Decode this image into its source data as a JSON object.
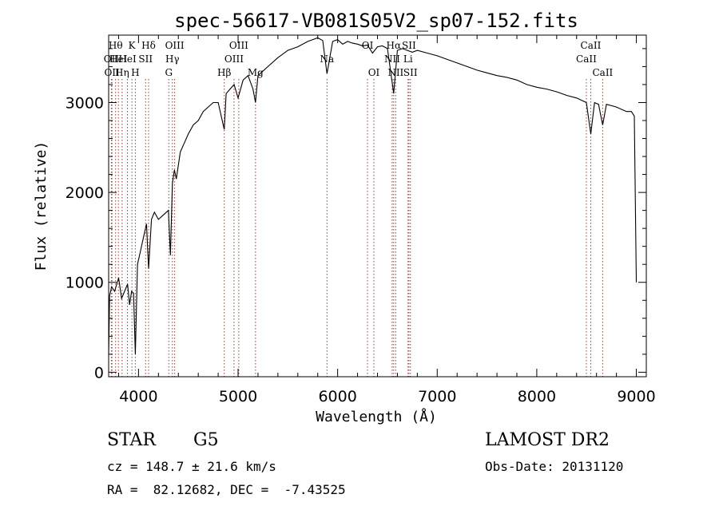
{
  "chart_data": {
    "type": "line",
    "title": "spec-56617-VB081S05V2_sp07-152.fits",
    "xlabel": "Wavelength (Å)",
    "ylabel": "Flux (relative)",
    "xlim": [
      3700,
      9100
    ],
    "ylim": [
      -50,
      3750
    ],
    "xticks": [
      4000,
      5000,
      6000,
      7000,
      8000,
      9000
    ],
    "yticks": [
      0,
      1000,
      2000,
      3000
    ],
    "grid": false,
    "series": [
      {
        "x": [
          3700,
          3710,
          3730,
          3760,
          3800,
          3830,
          3860,
          3890,
          3910,
          3930,
          3950,
          3968,
          3990,
          4020,
          4050,
          4080,
          4101,
          4130,
          4160,
          4200,
          4250,
          4300,
          4320,
          4340,
          4360,
          4380,
          4420,
          4460,
          4500,
          4550,
          4600,
          4650,
          4700,
          4750,
          4800,
          4861,
          4880,
          4920,
          4960,
          5000,
          5050,
          5100,
          5150,
          5175,
          5200,
          5300,
          5400,
          5500,
          5600,
          5700,
          5750,
          5800,
          5850,
          5893,
          5950,
          6000,
          6050,
          6100,
          6150,
          6200,
          6250,
          6300,
          6350,
          6400,
          6450,
          6500,
          6563,
          6600,
          6650,
          6700,
          6750,
          6800,
          6900,
          7000,
          7100,
          7200,
          7300,
          7400,
          7500,
          7600,
          7700,
          7800,
          7900,
          8000,
          8100,
          8200,
          8300,
          8400,
          8498,
          8542,
          8580,
          8620,
          8662,
          8700,
          8800,
          8900,
          8950,
          8980,
          9000
        ],
        "y": [
          200,
          850,
          950,
          900,
          1050,
          820,
          900,
          980,
          750,
          900,
          880,
          200,
          1200,
          1350,
          1500,
          1650,
          1150,
          1700,
          1780,
          1700,
          1750,
          1800,
          1300,
          2100,
          2250,
          2150,
          2450,
          2550,
          2650,
          2750,
          2800,
          2900,
          2950,
          3000,
          3000,
          2700,
          3100,
          3150,
          3200,
          3050,
          3250,
          3300,
          3150,
          3000,
          3300,
          3400,
          3500,
          3580,
          3620,
          3680,
          3700,
          3720,
          3690,
          3320,
          3680,
          3700,
          3650,
          3680,
          3660,
          3650,
          3630,
          3640,
          3550,
          3620,
          3630,
          3600,
          3100,
          3580,
          3600,
          3580,
          3560,
          3580,
          3550,
          3520,
          3480,
          3440,
          3400,
          3360,
          3330,
          3300,
          3280,
          3250,
          3200,
          3170,
          3150,
          3120,
          3080,
          3050,
          3000,
          2650,
          3000,
          2980,
          2750,
          2980,
          2950,
          2900,
          2900,
          2850,
          1000
        ]
      }
    ],
    "lines": [
      {
        "x": 3727,
        "label": "OII",
        "row": 2
      },
      {
        "x": 3733,
        "label": "OII",
        "row": 3
      },
      {
        "x": 3770,
        "label": "Hθ",
        "row": 1
      },
      {
        "x": 3798,
        "label": "HeI",
        "row": 2
      },
      {
        "x": 3835,
        "label": "Hη",
        "row": 3
      },
      {
        "x": 3889,
        "label": "HeI",
        "row": 2
      },
      {
        "x": 3934,
        "label": "K",
        "row": 1
      },
      {
        "x": 3968,
        "label": "H",
        "row": 3
      },
      {
        "x": 4071,
        "label": "SII",
        "row": 2
      },
      {
        "x": 4101,
        "label": "Hδ",
        "row": 1
      },
      {
        "x": 4304,
        "label": "G",
        "row": 3
      },
      {
        "x": 4340,
        "label": "Hγ",
        "row": 2
      },
      {
        "x": 4363,
        "label": "OIII",
        "row": 1
      },
      {
        "x": 4861,
        "label": "Hβ",
        "row": 3
      },
      {
        "x": 4959,
        "label": "OIII",
        "row": 2
      },
      {
        "x": 5007,
        "label": "OIII",
        "row": 1
      },
      {
        "x": 5175,
        "label": "Mg",
        "row": 3
      },
      {
        "x": 5893,
        "label": "Na",
        "row": 2
      },
      {
        "x": 6300,
        "label": "OI",
        "row": 1
      },
      {
        "x": 6364,
        "label": "OI",
        "row": 3
      },
      {
        "x": 6548,
        "label": "NII",
        "row": 2
      },
      {
        "x": 6563,
        "label": "Hα",
        "row": 1
      },
      {
        "x": 6583,
        "label": "NII",
        "row": 3
      },
      {
        "x": 6707,
        "label": "Li",
        "row": 2
      },
      {
        "x": 6716,
        "label": "SII",
        "row": 1
      },
      {
        "x": 6731,
        "label": "SII",
        "row": 3
      },
      {
        "x": 8498,
        "label": "CaII",
        "row": 2
      },
      {
        "x": 8542,
        "label": "CaII",
        "row": 1
      },
      {
        "x": 8662,
        "label": "CaII",
        "row": 3
      }
    ]
  },
  "info": {
    "class_label": "STAR",
    "subclass": "G5",
    "survey": "LAMOST DR2",
    "cz_text": "cz = 148.7 ± 21.6 km/s",
    "obs_date": "Obs-Date: 20131120",
    "coords": "RA =  82.12682, DEC =  -7.43525"
  },
  "colors": {
    "spectrum": "#000000",
    "line_markers": "#b03030"
  }
}
